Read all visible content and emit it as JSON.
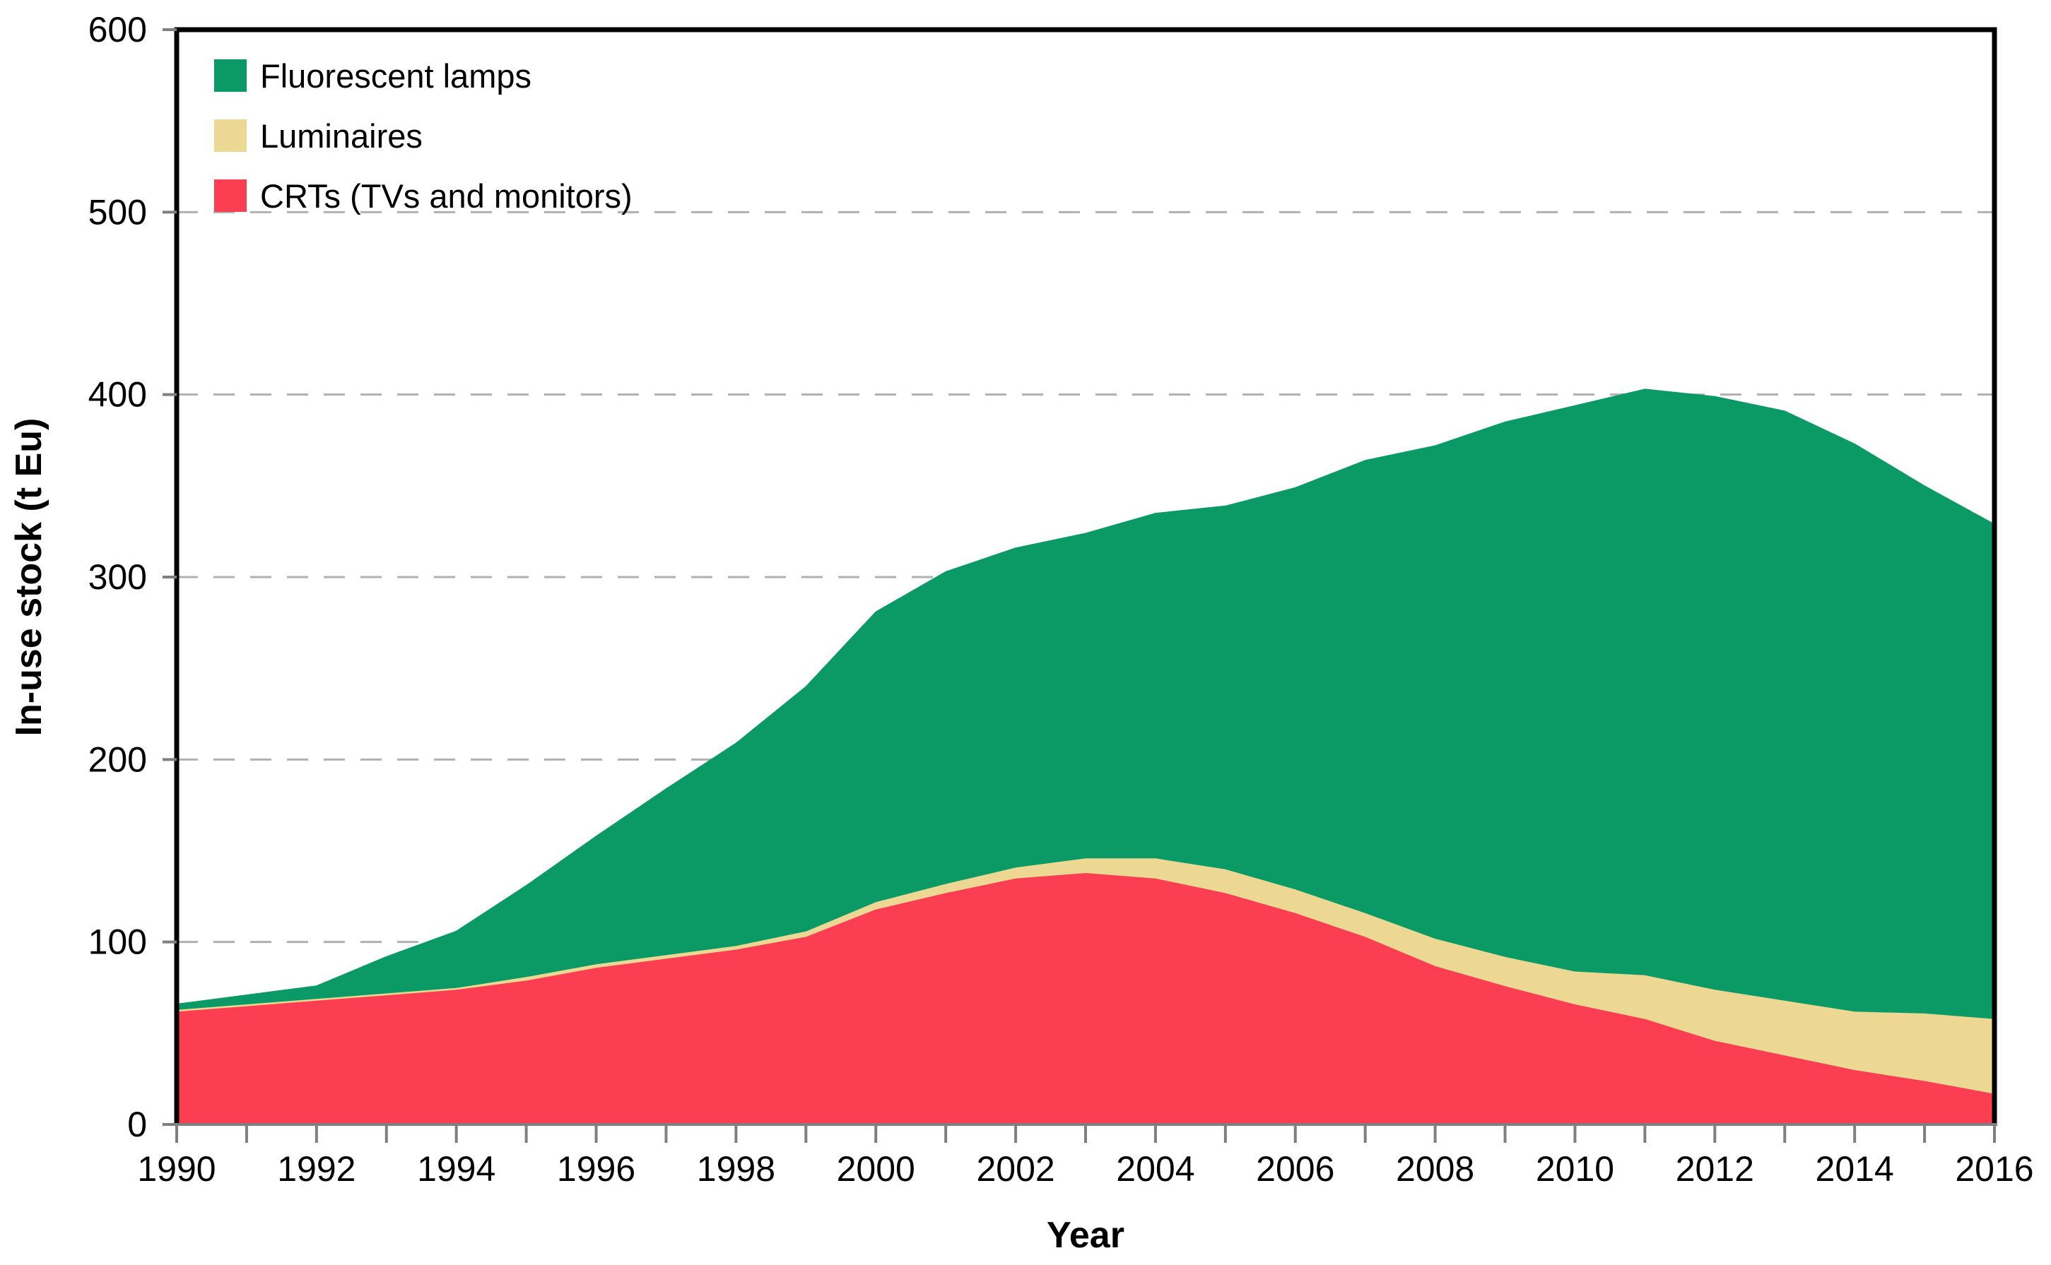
{
  "figure": {
    "background": "#ffffff",
    "xlabel": "Year",
    "ylabel": "In-use stock (t Eu)"
  },
  "legend": {
    "position": "top-left-inside",
    "items": [
      {
        "label": "Fluorescent lamps",
        "color": "#0b9a66"
      },
      {
        "label": "Luminaires",
        "color": "#ecd892"
      },
      {
        "label": "CRTs (TVs and monitors)",
        "color": "#fc3e53"
      }
    ]
  },
  "axes": {
    "x_tick_labels": [
      "1990",
      "1992",
      "1994",
      "1996",
      "1998",
      "2000",
      "2002",
      "2004",
      "2006",
      "2008",
      "2010",
      "2012",
      "2014",
      "2016"
    ],
    "y_tick_labels": [
      "0",
      "100",
      "200",
      "300",
      "400",
      "500",
      "600"
    ],
    "grid_color": "#b0b0b0",
    "tick_color": "#7f7f7f",
    "border_color": "#000000",
    "bottom_axis_color": "#7f7f7f"
  },
  "chart_data": {
    "type": "area",
    "stacked": true,
    "title": "",
    "xlabel": "Year",
    "ylabel": "In-use stock (t Eu)",
    "xlim": [
      1990,
      2016
    ],
    "ylim": [
      0,
      600
    ],
    "yticks": [
      0,
      100,
      200,
      300,
      400,
      500,
      600
    ],
    "xticks_minor_every": 1,
    "xticks_labeled_every": 2,
    "grid": "horizontal-dashed-100-to-500",
    "legend_position": "top-left inside plot",
    "x": [
      1990,
      1991,
      1992,
      1993,
      1994,
      1995,
      1996,
      1997,
      1998,
      1999,
      2000,
      2001,
      2002,
      2003,
      2004,
      2005,
      2006,
      2007,
      2008,
      2009,
      2010,
      2011,
      2012,
      2013,
      2014,
      2015,
      2016
    ],
    "series": [
      {
        "name": "CRTs (TVs and monitors)",
        "color": "#fc3e53",
        "values": [
          62,
          65,
          68,
          71,
          74,
          79,
          86,
          91,
          96,
          103,
          118,
          127,
          135,
          138,
          135,
          127,
          116,
          103,
          87,
          76,
          66,
          58,
          46,
          38,
          30,
          24,
          17
        ]
      },
      {
        "name": "Luminaires",
        "color": "#ecd892",
        "values": [
          1,
          1,
          1,
          1,
          1,
          2,
          2,
          2,
          2,
          3,
          4,
          5,
          6,
          8,
          11,
          13,
          13,
          13,
          15,
          16,
          18,
          24,
          28,
          30,
          32,
          37,
          41
        ]
      },
      {
        "name": "Fluorescent lamps",
        "color": "#0b9a66",
        "values": [
          3,
          5,
          7,
          20,
          31,
          50,
          70,
          91,
          111,
          134,
          159,
          171,
          175,
          178,
          189,
          199,
          220,
          248,
          270,
          293,
          310,
          321,
          325,
          323,
          311,
          289,
          271
        ]
      }
    ],
    "stacked_totals": [
      66,
      71,
      76,
      92,
      106,
      131,
      158,
      184,
      209,
      240,
      281,
      303,
      316,
      324,
      335,
      339,
      349,
      364,
      372,
      385,
      394,
      403,
      399,
      391,
      373,
      350,
      329
    ]
  }
}
